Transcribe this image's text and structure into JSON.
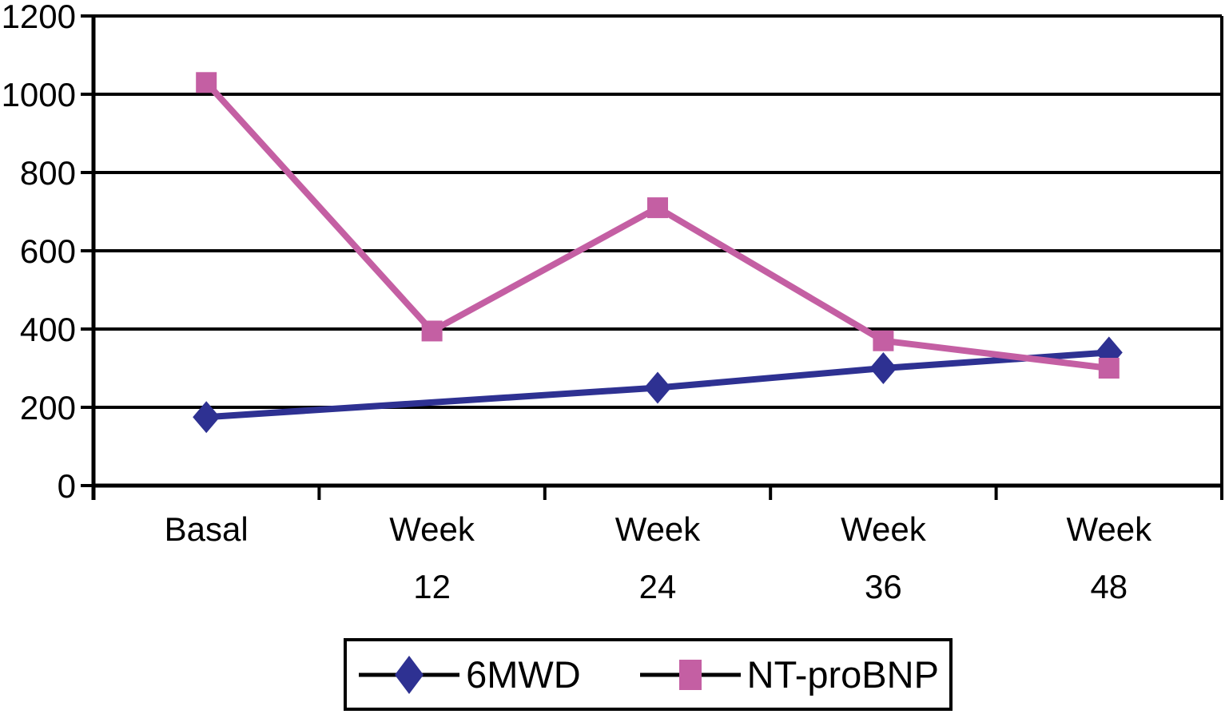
{
  "chart_data": {
    "type": "line",
    "title": "",
    "xlabel": "",
    "ylabel": "",
    "categories": [
      "Basal",
      "Week 12",
      "Week 24",
      "Week 36",
      "Week 48"
    ],
    "x_tick_display": [
      {
        "line1": "Basal",
        "line2": ""
      },
      {
        "line1": "Week",
        "line2": "12"
      },
      {
        "line1": "Week",
        "line2": "24"
      },
      {
        "line1": "Week",
        "line2": "36"
      },
      {
        "line1": "Week",
        "line2": "48"
      }
    ],
    "ylim": [
      0,
      1200
    ],
    "y_ticks": [
      0,
      200,
      400,
      600,
      800,
      1000,
      1200
    ],
    "grid": "horizontal-only",
    "legend_position": "bottom-center",
    "axis_color": "#000000",
    "series": [
      {
        "name": "6MWD",
        "color": "#2e3192",
        "marker": "diamond",
        "values": [
          175,
          null,
          250,
          300,
          340
        ]
      },
      {
        "name": "NT-proBNP",
        "color": "#c45fa3",
        "marker": "square",
        "values": [
          1030,
          395,
          710,
          370,
          300
        ]
      }
    ]
  }
}
